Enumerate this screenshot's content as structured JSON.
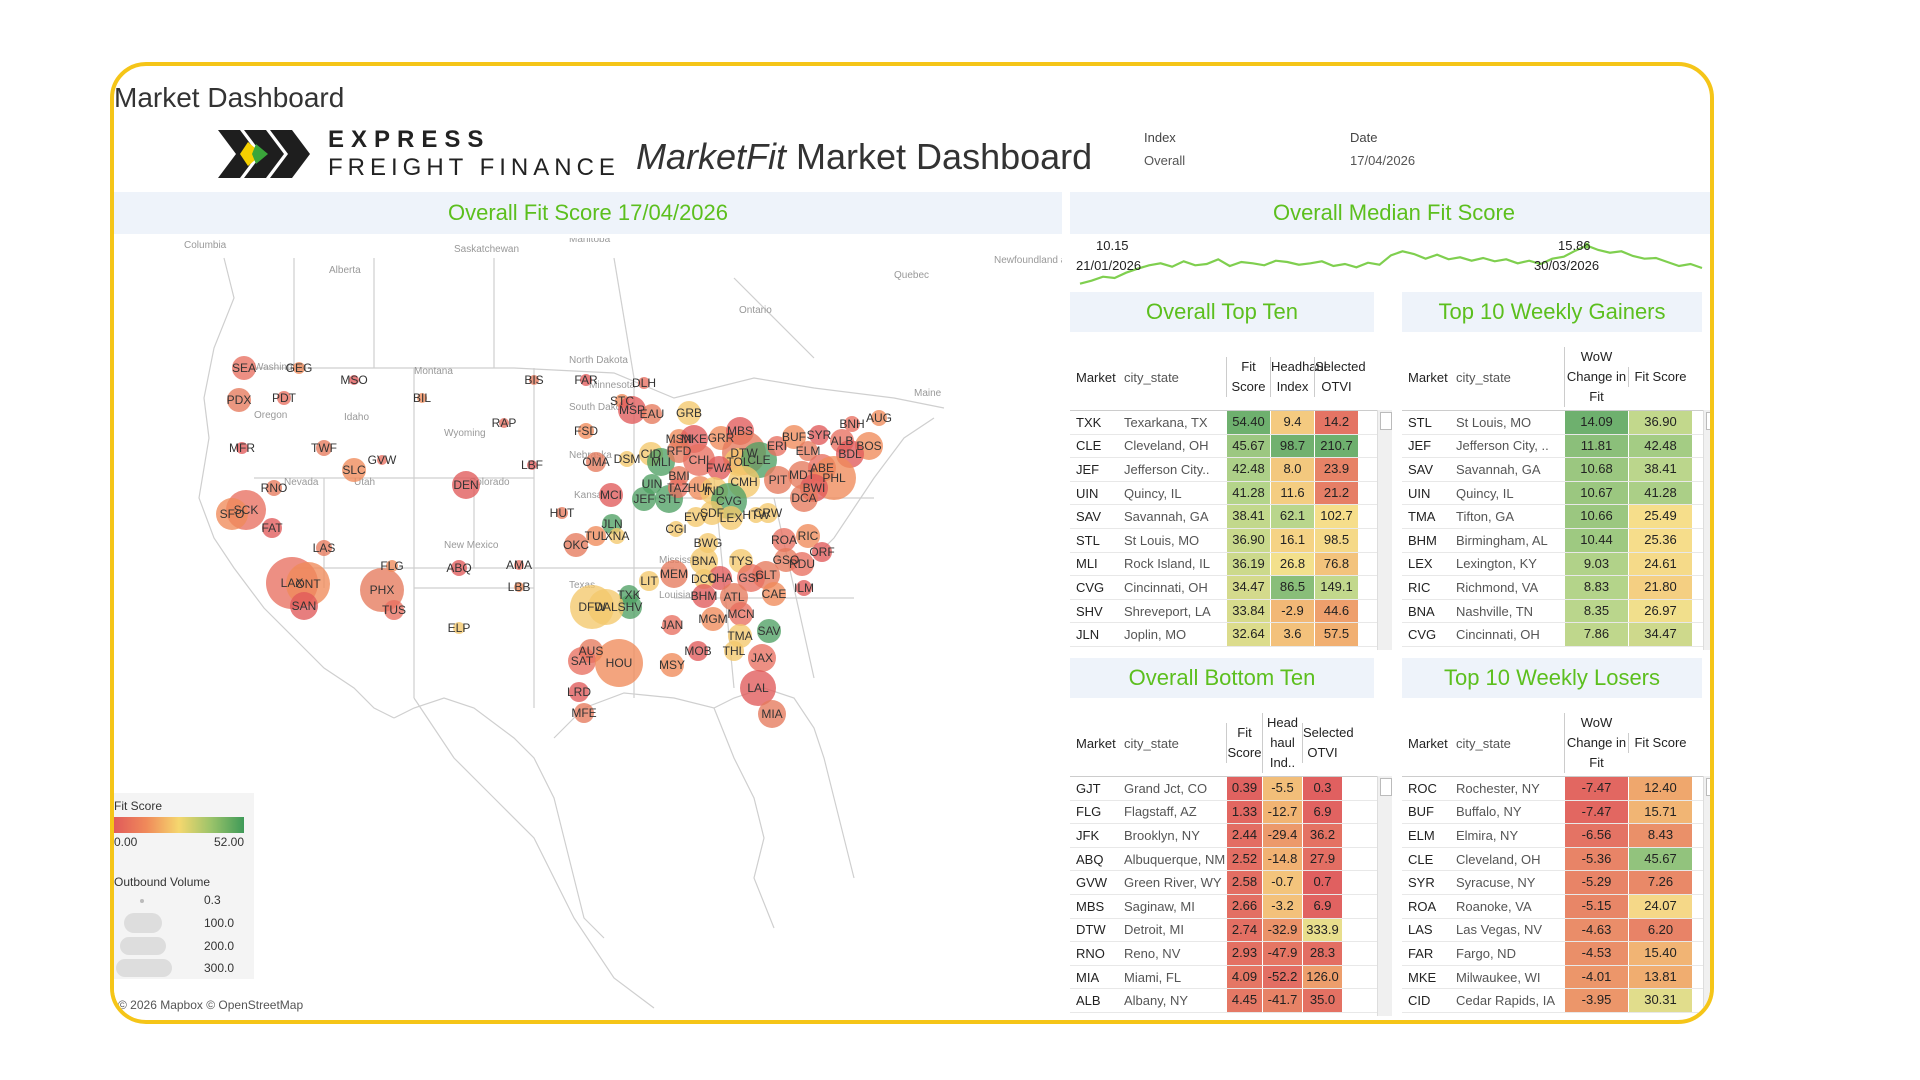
{
  "header": {
    "dashboard_title": "Market Dashboard",
    "logo_line1": "EXPRESS",
    "logo_line2": "FREIGHT FINANCE",
    "title_italic": "MarketFit",
    "title_rest": "Market Dashboard",
    "index_label": "Index",
    "index_value": "Overall",
    "date_label": "Date",
    "date_value": "17/04/2026"
  },
  "colors": {
    "accent_green": "#5cbf1e",
    "frame": "#f5c518",
    "panel_bg": "#eef3fa",
    "low": "#e05a5a",
    "mid": "#f5d76e",
    "high": "#3f9a58"
  },
  "map": {
    "title": "Overall Fit Score 17/04/2026",
    "region_labels": [
      "Columbia",
      "Alberta",
      "Saskatchewan",
      "Manitoba",
      "Ontario",
      "Quebec",
      "Newfoundland and Labrador",
      "Washington",
      "Oregon",
      "Idaho",
      "Montana",
      "Wyoming",
      "Nevada",
      "Utah",
      "Colorado",
      "North Dakota",
      "South Dakota",
      "Nebraska",
      "Kansas",
      "New Mexico",
      "Texas",
      "Mississippi",
      "Louisiana",
      "Minnesota",
      "Maine"
    ],
    "legend": {
      "fit_title": "Fit Score",
      "fit_min": "0.00",
      "fit_max": "52.00",
      "vol_title": "Outbound Volume",
      "vol_levels": [
        "0.3",
        "100.0",
        "200.0",
        "300.0"
      ]
    },
    "credit": "© 2026 Mapbox © OpenStreetMap",
    "markets": [
      {
        "code": "SEA",
        "score": "low"
      },
      {
        "code": "GEG",
        "score": "low"
      },
      {
        "code": "MSO",
        "score": "low"
      },
      {
        "code": "PDX",
        "score": "low"
      },
      {
        "code": "PDT",
        "score": "low"
      },
      {
        "code": "BIL",
        "score": "low"
      },
      {
        "code": "MFR",
        "score": "low"
      },
      {
        "code": "TWF",
        "score": "low"
      },
      {
        "code": "GVW",
        "score": "low"
      },
      {
        "code": "SLC",
        "score": "low"
      },
      {
        "code": "DEN",
        "score": "low"
      },
      {
        "code": "RNO",
        "score": "low"
      },
      {
        "code": "SCK",
        "score": "low"
      },
      {
        "code": "SFO",
        "score": "low"
      },
      {
        "code": "FAT",
        "score": "low"
      },
      {
        "code": "LAS",
        "score": "low"
      },
      {
        "code": "LAX",
        "score": "low"
      },
      {
        "code": "ONT",
        "score": "low"
      },
      {
        "code": "SAN",
        "score": "low"
      },
      {
        "code": "PHX",
        "score": "low"
      },
      {
        "code": "TUS",
        "score": "low"
      },
      {
        "code": "FLG",
        "score": "low"
      },
      {
        "code": "ABQ",
        "score": "low"
      },
      {
        "code": "ELP",
        "score": "mid"
      },
      {
        "code": "AMA",
        "score": "low"
      },
      {
        "code": "LBB",
        "score": "low"
      },
      {
        "code": "FAR",
        "score": "low"
      },
      {
        "code": "BIS",
        "score": "low"
      },
      {
        "code": "DLH",
        "score": "low"
      },
      {
        "code": "STC",
        "score": "low"
      },
      {
        "code": "MSP",
        "score": "low"
      },
      {
        "code": "EAU",
        "score": "low"
      },
      {
        "code": "RAP",
        "score": "low"
      },
      {
        "code": "FSD",
        "score": "low"
      },
      {
        "code": "LBF",
        "score": "low"
      },
      {
        "code": "OMA",
        "score": "low"
      },
      {
        "code": "DSM",
        "score": "mid"
      },
      {
        "code": "CID",
        "score": "mid"
      },
      {
        "code": "MLI",
        "score": "high"
      },
      {
        "code": "UIN",
        "score": "high"
      },
      {
        "code": "JEF",
        "score": "high"
      },
      {
        "code": "STL",
        "score": "high"
      },
      {
        "code": "MCI",
        "score": "low"
      },
      {
        "code": "HUT",
        "score": "low"
      },
      {
        "code": "JLN",
        "score": "high"
      },
      {
        "code": "TUL",
        "score": "low"
      },
      {
        "code": "XNA",
        "score": "mid"
      },
      {
        "code": "OKC",
        "score": "low"
      },
      {
        "code": "GRB",
        "score": "mid"
      },
      {
        "code": "MSN",
        "score": "low"
      },
      {
        "code": "MKE",
        "score": "low"
      },
      {
        "code": "RFD",
        "score": "low"
      },
      {
        "code": "CHI",
        "score": "low"
      },
      {
        "code": "GRR",
        "score": "low"
      },
      {
        "code": "MBS",
        "score": "low"
      },
      {
        "code": "DTW",
        "score": "low"
      },
      {
        "code": "TOL",
        "score": "mid"
      },
      {
        "code": "CLE",
        "score": "high"
      },
      {
        "code": "FWA",
        "score": "low"
      },
      {
        "code": "BMI",
        "score": "low"
      },
      {
        "code": "TAZ",
        "score": "low"
      },
      {
        "code": "HUF",
        "score": "low"
      },
      {
        "code": "IND",
        "score": "mid"
      },
      {
        "code": "CMH",
        "score": "mid"
      },
      {
        "code": "CVG",
        "score": "high"
      },
      {
        "code": "SDF",
        "score": "mid"
      },
      {
        "code": "LEX",
        "score": "mid"
      },
      {
        "code": "EVV",
        "score": "mid"
      },
      {
        "code": "CGI",
        "score": "mid"
      },
      {
        "code": "BWG",
        "score": "mid"
      },
      {
        "code": "BNA",
        "score": "mid"
      },
      {
        "code": "PIT",
        "score": "low"
      },
      {
        "code": "ERI",
        "score": "low"
      },
      {
        "code": "BUF",
        "score": "low"
      },
      {
        "code": "SYR",
        "score": "low"
      },
      {
        "code": "ELM",
        "score": "low"
      },
      {
        "code": "ALB",
        "score": "low"
      },
      {
        "code": "BOS",
        "score": "low"
      },
      {
        "code": "BDL",
        "score": "low"
      },
      {
        "code": "MDT",
        "score": "low"
      },
      {
        "code": "ABE",
        "score": "low"
      },
      {
        "code": "PHL",
        "score": "low"
      },
      {
        "code": "BWI",
        "score": "low"
      },
      {
        "code": "DCA",
        "score": "low"
      },
      {
        "code": "BNH",
        "score": "low"
      },
      {
        "code": "AUG",
        "score": "low"
      },
      {
        "code": "CRW",
        "score": "mid"
      },
      {
        "code": "HTW",
        "score": "mid"
      },
      {
        "code": "ROA",
        "score": "low"
      },
      {
        "code": "RIC",
        "score": "low"
      },
      {
        "code": "ORF",
        "score": "low"
      },
      {
        "code": "GSO",
        "score": "low"
      },
      {
        "code": "RDU",
        "score": "low"
      },
      {
        "code": "TYS",
        "score": "mid"
      },
      {
        "code": "CHA",
        "score": "low"
      },
      {
        "code": "CLT",
        "score": "low"
      },
      {
        "code": "GSP",
        "score": "low"
      },
      {
        "code": "CAE",
        "score": "low"
      },
      {
        "code": "ILM",
        "score": "low"
      },
      {
        "code": "MEM",
        "score": "low"
      },
      {
        "code": "LIT",
        "score": "mid"
      },
      {
        "code": "DCU",
        "score": "mid"
      },
      {
        "code": "BHM",
        "score": "low"
      },
      {
        "code": "ATL",
        "score": "low"
      },
      {
        "code": "MCN",
        "score": "low"
      },
      {
        "code": "MGM",
        "score": "low"
      },
      {
        "code": "TMA",
        "score": "mid"
      },
      {
        "code": "SAV",
        "score": "high"
      },
      {
        "code": "JAX",
        "score": "low"
      },
      {
        "code": "THL",
        "score": "mid"
      },
      {
        "code": "LAL",
        "score": "low"
      },
      {
        "code": "MIA",
        "score": "low"
      },
      {
        "code": "JAN",
        "score": "low"
      },
      {
        "code": "MSY",
        "score": "low"
      },
      {
        "code": "MOB",
        "score": "low"
      },
      {
        "code": "TXK",
        "score": "high"
      },
      {
        "code": "SHV",
        "score": "high"
      },
      {
        "code": "DFW",
        "score": "mid"
      },
      {
        "code": "DAL",
        "score": "mid"
      },
      {
        "code": "AUS",
        "score": "low"
      },
      {
        "code": "SAT",
        "score": "low"
      },
      {
        "code": "HOU",
        "score": "low"
      },
      {
        "code": "LRD",
        "score": "low"
      },
      {
        "code": "MFE",
        "score": "low"
      }
    ]
  },
  "median": {
    "title": "Overall Median Fit Score",
    "start_value": "10.15",
    "start_date": "21/01/2026",
    "peak_value": "15.86",
    "peak_date": "30/03/2026",
    "series": [
      10.15,
      10.6,
      11.2,
      11.0,
      11.8,
      12.4,
      12.9,
      13.2,
      12.7,
      13.5,
      12.9,
      13.1,
      13.8,
      12.8,
      13.4,
      13.2,
      12.9,
      13.6,
      13.4,
      13.0,
      13.2,
      13.5,
      12.8,
      13.1,
      12.6,
      13.3,
      13.0,
      14.4,
      15.0,
      14.6,
      13.9,
      14.5,
      13.8,
      14.1,
      13.6,
      14.0,
      13.5,
      13.8,
      13.2,
      13.6,
      13.1,
      13.9,
      14.2,
      15.1,
      15.86,
      15.2,
      14.8,
      15.0,
      14.3,
      13.9,
      14.0,
      13.4,
      12.8,
      13.1,
      12.5
    ]
  },
  "top_ten": {
    "title": "Overall Top Ten",
    "headers": [
      "Market",
      "city_state",
      "Fit Score",
      "Headhaul Index",
      "Selected OTVI"
    ],
    "rows": [
      [
        "TXK",
        "Texarkana, TX",
        "54.40",
        "9.4",
        "14.2"
      ],
      [
        "CLE",
        "Cleveland, OH",
        "45.67",
        "98.7",
        "210.7"
      ],
      [
        "JEF",
        "Jefferson City..",
        "42.48",
        "8.0",
        "23.9"
      ],
      [
        "UIN",
        "Quincy, IL",
        "41.28",
        "11.6",
        "21.2"
      ],
      [
        "SAV",
        "Savannah, GA",
        "38.41",
        "62.1",
        "102.7"
      ],
      [
        "STL",
        "St Louis, MO",
        "36.90",
        "16.1",
        "98.5"
      ],
      [
        "MLI",
        "Rock Island, IL",
        "36.19",
        "26.8",
        "76.8"
      ],
      [
        "CVG",
        "Cincinnati, OH",
        "34.47",
        "86.5",
        "149.1"
      ],
      [
        "SHV",
        "Shreveport, LA",
        "33.84",
        "-2.9",
        "44.6"
      ],
      [
        "JLN",
        "Joplin, MO",
        "32.64",
        "3.6",
        "57.5"
      ]
    ]
  },
  "gainers": {
    "title": "Top 10 Weekly Gainers",
    "headers": [
      "Market",
      "city_state",
      "WoW Change in Fit",
      "Fit Score"
    ],
    "rows": [
      [
        "STL",
        "St Louis, MO",
        "14.09",
        "36.90"
      ],
      [
        "JEF",
        "Jefferson City, ..",
        "11.81",
        "42.48"
      ],
      [
        "SAV",
        "Savannah, GA",
        "10.68",
        "38.41"
      ],
      [
        "UIN",
        "Quincy, IL",
        "10.67",
        "41.28"
      ],
      [
        "TMA",
        "Tifton, GA",
        "10.66",
        "25.49"
      ],
      [
        "BHM",
        "Birmingham, AL",
        "10.44",
        "25.36"
      ],
      [
        "LEX",
        "Lexington, KY",
        "9.03",
        "24.61"
      ],
      [
        "RIC",
        "Richmond, VA",
        "8.83",
        "21.80"
      ],
      [
        "BNA",
        "Nashville, TN",
        "8.35",
        "26.97"
      ],
      [
        "CVG",
        "Cincinnati, OH",
        "7.86",
        "34.47"
      ]
    ]
  },
  "bottom_ten": {
    "title": "Overall Bottom Ten",
    "headers": [
      "Market",
      "city_state",
      "Fit Score",
      "Head haul Ind..",
      "Selected OTVI"
    ],
    "rows": [
      [
        "GJT",
        "Grand Jct, CO",
        "0.39",
        "-5.5",
        "0.3"
      ],
      [
        "FLG",
        "Flagstaff, AZ",
        "1.33",
        "-12.7",
        "6.9"
      ],
      [
        "JFK",
        "Brooklyn, NY",
        "2.44",
        "-29.4",
        "36.2"
      ],
      [
        "ABQ",
        "Albuquerque, NM",
        "2.52",
        "-14.8",
        "27.9"
      ],
      [
        "GVW",
        "Green River, WY",
        "2.58",
        "-0.7",
        "0.7"
      ],
      [
        "MBS",
        "Saginaw, MI",
        "2.66",
        "-3.2",
        "6.9"
      ],
      [
        "DTW",
        "Detroit, MI",
        "2.74",
        "-32.9",
        "333.9"
      ],
      [
        "RNO",
        "Reno, NV",
        "2.93",
        "-47.9",
        "28.3"
      ],
      [
        "MIA",
        "Miami, FL",
        "4.09",
        "-52.2",
        "126.0"
      ],
      [
        "ALB",
        "Albany, NY",
        "4.45",
        "-41.7",
        "35.0"
      ]
    ]
  },
  "losers": {
    "title": "Top 10 Weekly Losers",
    "headers": [
      "Market",
      "city_state",
      "WoW Change in Fit",
      "Fit Score"
    ],
    "rows": [
      [
        "ROC",
        "Rochester, NY",
        "-7.47",
        "12.40"
      ],
      [
        "BUF",
        "Buffalo, NY",
        "-7.47",
        "15.71"
      ],
      [
        "ELM",
        "Elmira, NY",
        "-6.56",
        "8.43"
      ],
      [
        "CLE",
        "Cleveland, OH",
        "-5.36",
        "45.67"
      ],
      [
        "SYR",
        "Syracuse, NY",
        "-5.29",
        "7.26"
      ],
      [
        "ROA",
        "Roanoke, VA",
        "-5.15",
        "24.07"
      ],
      [
        "LAS",
        "Las Vegas, NV",
        "-4.63",
        "6.20"
      ],
      [
        "FAR",
        "Fargo, ND",
        "-4.53",
        "15.40"
      ],
      [
        "MKE",
        "Milwaukee, WI",
        "-4.01",
        "13.81"
      ],
      [
        "CID",
        "Cedar Rapids, IA",
        "-3.95",
        "30.31"
      ]
    ]
  }
}
